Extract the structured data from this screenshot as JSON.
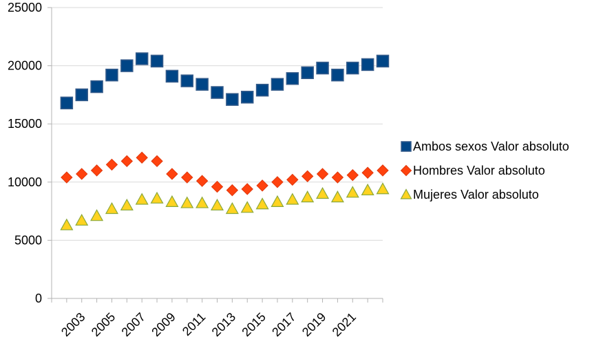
{
  "chart_data": {
    "type": "scatter",
    "title": "",
    "xlabel": "",
    "ylabel": "",
    "ylim": [
      0,
      25000
    ],
    "yticks": [
      0,
      5000,
      10000,
      15000,
      20000,
      25000
    ],
    "x": [
      2002,
      2003,
      2004,
      2005,
      2006,
      2007,
      2008,
      2009,
      2010,
      2011,
      2012,
      2013,
      2014,
      2015,
      2016,
      2017,
      2018,
      2019,
      2020,
      2021,
      2022,
      2023
    ],
    "xtick_labels": [
      "2003",
      "2005",
      "2007",
      "2009",
      "2011",
      "2013",
      "2015",
      "2017",
      "2019",
      "2021"
    ],
    "grid": true,
    "legend_position": "right",
    "colors": {
      "ambos_fill": "#004586",
      "ambos_stroke": "#355b8a",
      "hombres_fill": "#ff420e",
      "hombres_stroke": "#e0380c",
      "mujeres_fill": "#ffd320",
      "mujeres_stroke": "#8aa83a",
      "grid": "#d9d9d9",
      "axis": "#b3b3b3"
    },
    "series": [
      {
        "name": "Ambos sexos Valor absoluto",
        "marker": "square",
        "values": [
          16800,
          17500,
          18200,
          19200,
          20000,
          20600,
          20400,
          19100,
          18700,
          18400,
          17700,
          17100,
          17300,
          17900,
          18400,
          18900,
          19400,
          19800,
          19200,
          19800,
          20100,
          20400
        ]
      },
      {
        "name": "Hombres Valor absoluto",
        "marker": "diamond",
        "values": [
          10400,
          10700,
          11000,
          11500,
          11800,
          12100,
          11800,
          10700,
          10400,
          10100,
          9600,
          9300,
          9400,
          9700,
          10000,
          10200,
          10500,
          10700,
          10400,
          10600,
          10800,
          11000
        ]
      },
      {
        "name": "Mujeres Valor absoluto",
        "marker": "triangle",
        "values": [
          6300,
          6700,
          7100,
          7700,
          8000,
          8500,
          8600,
          8300,
          8200,
          8200,
          8000,
          7700,
          7800,
          8100,
          8300,
          8500,
          8700,
          9000,
          8700,
          9100,
          9300,
          9400
        ]
      }
    ]
  }
}
